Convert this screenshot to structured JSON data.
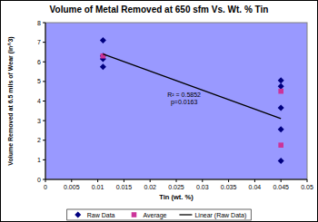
{
  "chart_data": {
    "type": "scatter",
    "title": "Volume of Metal Removed at 650 sfm Vs. Wt. % Tin",
    "x_label": "Tin (wt. %)",
    "y_label": "Volume Removed at 6.5 mils of Wear (in^3)",
    "annotations": [
      "R² = 0.5852",
      "p=0.0163"
    ],
    "xlim": [
      0,
      0.05
    ],
    "xticks": [
      0,
      0.005,
      0.01,
      0.015,
      0.02,
      0.025,
      0.03,
      0.035,
      0.04,
      0.045,
      0.05
    ],
    "ylim": [
      0,
      8
    ],
    "yticks": [
      0,
      1,
      2,
      3,
      4,
      5,
      6,
      7,
      8
    ],
    "grid": false,
    "legend": "bottom",
    "series": [
      {
        "name": "Raw Data",
        "type": "scatter",
        "marker": "diamond",
        "color": "#000080",
        "x": [
          0.011,
          0.011,
          0.011,
          0.011,
          0.045,
          0.045,
          0.045,
          0.045,
          0.045
        ],
        "values": [
          7.1,
          6.3,
          6.15,
          5.75,
          5.05,
          4.75,
          3.65,
          2.55,
          0.95
        ]
      },
      {
        "name": "Average",
        "type": "scatter",
        "marker": "square",
        "color": "#cc3399",
        "x": [
          0.011,
          0.045,
          0.045
        ],
        "values": [
          6.3,
          4.5,
          1.75
        ]
      },
      {
        "name": "Linear (Raw Data)",
        "type": "line",
        "line_style": "solid",
        "color": "#000000",
        "x": [
          0.011,
          0.045
        ],
        "values": [
          6.4,
          3.1
        ]
      }
    ]
  }
}
